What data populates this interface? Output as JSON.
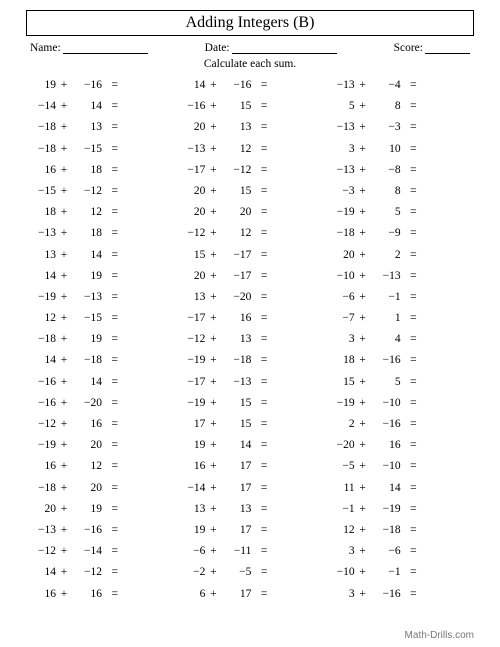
{
  "title": "Adding Integers (B)",
  "labels": {
    "name": "Name:",
    "date": "Date:",
    "score": "Score:"
  },
  "instruction": "Calculate each sum.",
  "plus_sign": "+",
  "equals_sign": "=",
  "footer": "Math-Drills.com",
  "columns": [
    [
      {
        "a": "19",
        "b": "−16"
      },
      {
        "a": "−14",
        "b": "14"
      },
      {
        "a": "−18",
        "b": "13"
      },
      {
        "a": "−18",
        "b": "−15"
      },
      {
        "a": "16",
        "b": "18"
      },
      {
        "a": "−15",
        "b": "−12"
      },
      {
        "a": "18",
        "b": "12"
      },
      {
        "a": "−13",
        "b": "18"
      },
      {
        "a": "13",
        "b": "14"
      },
      {
        "a": "14",
        "b": "19"
      },
      {
        "a": "−19",
        "b": "−13"
      },
      {
        "a": "12",
        "b": "−15"
      },
      {
        "a": "−18",
        "b": "19"
      },
      {
        "a": "14",
        "b": "−18"
      },
      {
        "a": "−16",
        "b": "14"
      },
      {
        "a": "−16",
        "b": "−20"
      },
      {
        "a": "−12",
        "b": "16"
      },
      {
        "a": "−19",
        "b": "20"
      },
      {
        "a": "16",
        "b": "12"
      },
      {
        "a": "−18",
        "b": "20"
      },
      {
        "a": "20",
        "b": "19"
      },
      {
        "a": "−13",
        "b": "−16"
      },
      {
        "a": "−12",
        "b": "−14"
      },
      {
        "a": "14",
        "b": "−12"
      },
      {
        "a": "16",
        "b": "16"
      }
    ],
    [
      {
        "a": "14",
        "b": "−16"
      },
      {
        "a": "−16",
        "b": "15"
      },
      {
        "a": "20",
        "b": "13"
      },
      {
        "a": "−13",
        "b": "12"
      },
      {
        "a": "−17",
        "b": "−12"
      },
      {
        "a": "20",
        "b": "15"
      },
      {
        "a": "20",
        "b": "20"
      },
      {
        "a": "−12",
        "b": "12"
      },
      {
        "a": "15",
        "b": "−17"
      },
      {
        "a": "20",
        "b": "−17"
      },
      {
        "a": "13",
        "b": "−20"
      },
      {
        "a": "−17",
        "b": "16"
      },
      {
        "a": "−12",
        "b": "13"
      },
      {
        "a": "−19",
        "b": "−18"
      },
      {
        "a": "−17",
        "b": "−13"
      },
      {
        "a": "−19",
        "b": "15"
      },
      {
        "a": "17",
        "b": "15"
      },
      {
        "a": "19",
        "b": "14"
      },
      {
        "a": "16",
        "b": "17"
      },
      {
        "a": "−14",
        "b": "17"
      },
      {
        "a": "13",
        "b": "13"
      },
      {
        "a": "19",
        "b": "17"
      },
      {
        "a": "−6",
        "b": "−11"
      },
      {
        "a": "−2",
        "b": "−5"
      },
      {
        "a": "6",
        "b": "17"
      }
    ],
    [
      {
        "a": "−13",
        "b": "−4"
      },
      {
        "a": "5",
        "b": "8"
      },
      {
        "a": "−13",
        "b": "−3"
      },
      {
        "a": "3",
        "b": "10"
      },
      {
        "a": "−13",
        "b": "−8"
      },
      {
        "a": "−3",
        "b": "8"
      },
      {
        "a": "−19",
        "b": "5"
      },
      {
        "a": "−18",
        "b": "−9"
      },
      {
        "a": "20",
        "b": "2"
      },
      {
        "a": "−10",
        "b": "−13"
      },
      {
        "a": "−6",
        "b": "−1"
      },
      {
        "a": "−7",
        "b": "1"
      },
      {
        "a": "3",
        "b": "4"
      },
      {
        "a": "18",
        "b": "−16"
      },
      {
        "a": "15",
        "b": "5"
      },
      {
        "a": "−19",
        "b": "−10"
      },
      {
        "a": "2",
        "b": "−16"
      },
      {
        "a": "−20",
        "b": "16"
      },
      {
        "a": "−5",
        "b": "−10"
      },
      {
        "a": "11",
        "b": "14"
      },
      {
        "a": "−1",
        "b": "−19"
      },
      {
        "a": "12",
        "b": "−18"
      },
      {
        "a": "3",
        "b": "−6"
      },
      {
        "a": "−10",
        "b": "−1"
      },
      {
        "a": "3",
        "b": "−16"
      }
    ]
  ]
}
